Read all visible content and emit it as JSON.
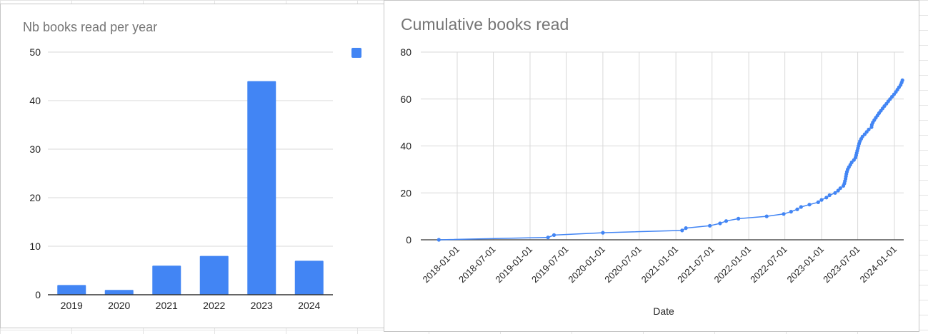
{
  "colors": {
    "series": "#4285f4",
    "grid": "#d9d9d9",
    "axis": "#333333",
    "title": "#757575",
    "label": "#222222"
  },
  "chart_data": [
    {
      "type": "bar",
      "title": "Nb books read per year",
      "categories": [
        "2019",
        "2020",
        "2021",
        "2022",
        "2023",
        "2024"
      ],
      "values": [
        2,
        1,
        6,
        8,
        44,
        7
      ],
      "ylim": [
        0,
        50
      ],
      "yticks": [
        "0",
        "10",
        "20",
        "30",
        "40",
        "50"
      ],
      "grid": true,
      "legend": "top-right",
      "legend_labels": [
        ""
      ]
    },
    {
      "type": "line",
      "title": "Cumulative books read",
      "xlabel": "Date",
      "ylim": [
        0,
        80
      ],
      "yticks": [
        "0",
        "20",
        "40",
        "60",
        "80"
      ],
      "xticks": [
        "2018-01-01",
        "2018-07-01",
        "2019-01-01",
        "2019-07-01",
        "2020-01-01",
        "2020-07-01",
        "2021-01-01",
        "2021-07-01",
        "2022-01-01",
        "2022-07-01",
        "2023-01-01",
        "2023-07-01",
        "2024-01-01"
      ],
      "grid": true,
      "points": [
        [
          "2017-10-01",
          0
        ],
        [
          "2019-04-01",
          1
        ],
        [
          "2019-05-01",
          2
        ],
        [
          "2020-01-01",
          3
        ],
        [
          "2021-02-01",
          4
        ],
        [
          "2021-02-20",
          5
        ],
        [
          "2021-06-20",
          6
        ],
        [
          "2021-08-10",
          7
        ],
        [
          "2021-09-10",
          8
        ],
        [
          "2021-11-10",
          9
        ],
        [
          "2022-04-01",
          10
        ],
        [
          "2022-06-25",
          11
        ],
        [
          "2022-08-01",
          12
        ],
        [
          "2022-09-01",
          13
        ],
        [
          "2022-09-20",
          14
        ],
        [
          "2022-11-01",
          15
        ],
        [
          "2022-12-15",
          16
        ],
        [
          "2023-01-01",
          17
        ],
        [
          "2023-01-25",
          18
        ],
        [
          "2023-02-10",
          19
        ],
        [
          "2023-03-10",
          20
        ],
        [
          "2023-03-25",
          21
        ],
        [
          "2023-04-05",
          22
        ],
        [
          "2023-04-20",
          23
        ],
        [
          "2023-04-25",
          24
        ],
        [
          "2023-04-28",
          25
        ],
        [
          "2023-05-01",
          26
        ],
        [
          "2023-05-03",
          27
        ],
        [
          "2023-05-05",
          28
        ],
        [
          "2023-05-08",
          29
        ],
        [
          "2023-05-12",
          30
        ],
        [
          "2023-05-18",
          31
        ],
        [
          "2023-05-25",
          32
        ],
        [
          "2023-06-01",
          33
        ],
        [
          "2023-06-12",
          34
        ],
        [
          "2023-06-20",
          35
        ],
        [
          "2023-06-23",
          36
        ],
        [
          "2023-06-26",
          37
        ],
        [
          "2023-06-29",
          38
        ],
        [
          "2023-07-02",
          39
        ],
        [
          "2023-07-05",
          40
        ],
        [
          "2023-07-08",
          41
        ],
        [
          "2023-07-12",
          42
        ],
        [
          "2023-07-18",
          43
        ],
        [
          "2023-07-25",
          44
        ],
        [
          "2023-08-05",
          45
        ],
        [
          "2023-08-15",
          46
        ],
        [
          "2023-08-25",
          47
        ],
        [
          "2023-09-08",
          48
        ],
        [
          "2023-09-10",
          49
        ],
        [
          "2023-09-15",
          50
        ],
        [
          "2023-09-22",
          51
        ],
        [
          "2023-09-30",
          52
        ],
        [
          "2023-10-08",
          53
        ],
        [
          "2023-10-16",
          54
        ],
        [
          "2023-10-25",
          55
        ],
        [
          "2023-11-03",
          56
        ],
        [
          "2023-11-12",
          57
        ],
        [
          "2023-11-22",
          58
        ],
        [
          "2023-12-01",
          59
        ],
        [
          "2023-12-10",
          60
        ],
        [
          "2023-12-20",
          61
        ],
        [
          "2023-12-30",
          62
        ],
        [
          "2024-01-08",
          63
        ],
        [
          "2024-01-16",
          64
        ],
        [
          "2024-01-24",
          65
        ],
        [
          "2024-02-01",
          66
        ],
        [
          "2024-02-06",
          67
        ],
        [
          "2024-02-10",
          68
        ]
      ]
    }
  ]
}
